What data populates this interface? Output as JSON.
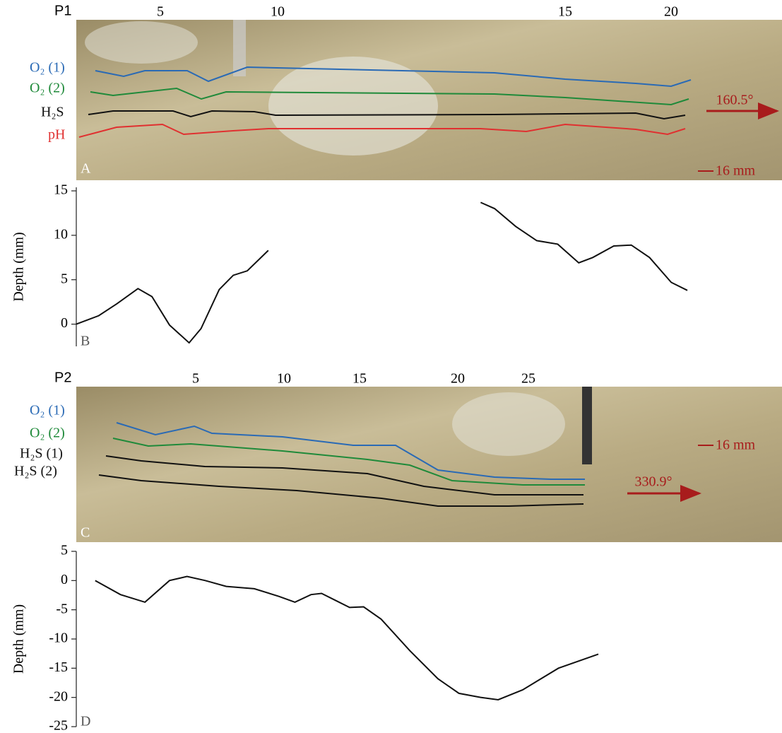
{
  "panel_a": {
    "profile": "P1",
    "stations": [
      5,
      10,
      15,
      20
    ],
    "letter": "A",
    "traces": [
      "O₂ (1)",
      "O₂ (2)",
      "H₂S",
      "pH"
    ],
    "bearing": "160.5°",
    "scale": "16 mm"
  },
  "panel_c": {
    "profile": "P2",
    "stations": [
      5,
      10,
      15,
      20,
      25
    ],
    "letter": "C",
    "traces": [
      "O₂ (1)",
      "O₂ (2)",
      "H₂S (1)",
      "H₂S (2)"
    ],
    "bearing": "330.9°",
    "scale": "16 mm"
  },
  "chart_data": [
    {
      "type": "line",
      "panel_label": "B",
      "y_label": "Depth (mm)",
      "color": "#111111",
      "x": [
        0,
        3.2,
        5.8,
        8.8,
        10.8,
        13.3,
        16.1,
        17.8,
        20.4,
        22.4,
        24.4,
        27.4,
        null,
        57.7,
        59.7,
        62.7,
        65.7,
        68.7,
        71.7,
        73.7,
        76.7,
        79.2,
        81.8,
        84.9,
        87.2
      ],
      "values": [
        0,
        0.95,
        2.3,
        4,
        3.1,
        -0.1,
        -2.1,
        -0.5,
        3.9,
        5.5,
        6,
        8.3,
        null,
        13.7,
        13,
        11,
        9.4,
        9,
        6.9,
        7.5,
        8.8,
        8.9,
        7.5,
        4.7,
        3.8
      ],
      "xlim": [
        0,
        100
      ],
      "ylim": [
        -2.5,
        15.4
      ],
      "yticks": [
        0,
        5,
        10,
        15
      ]
    },
    {
      "type": "line",
      "panel_label": "D",
      "y_label": "Depth (mm)",
      "color": "#111111",
      "x": [
        2.7,
        6.3,
        9.8,
        13.3,
        15.8,
        18.4,
        21.4,
        25.4,
        28.9,
        31.2,
        33.5,
        35,
        37,
        39,
        41,
        43.5,
        47.6,
        51.6,
        54.6,
        57.7,
        60.2,
        63.7,
        68.8,
        74.5
      ],
      "values": [
        0,
        -2.4,
        -3.7,
        0,
        0.7,
        0,
        -1,
        -1.4,
        -2.7,
        -3.7,
        -2.4,
        -2.2,
        -3.4,
        -4.6,
        -4.5,
        -6.6,
        -12,
        -16.8,
        -19.3,
        -20,
        -20.4,
        -18.7,
        -15,
        -12.6
      ],
      "xlim": [
        0,
        100
      ],
      "ylim": [
        -25,
        5
      ],
      "yticks": [
        -25,
        -20,
        -15,
        -10,
        -5,
        0,
        5
      ]
    }
  ]
}
